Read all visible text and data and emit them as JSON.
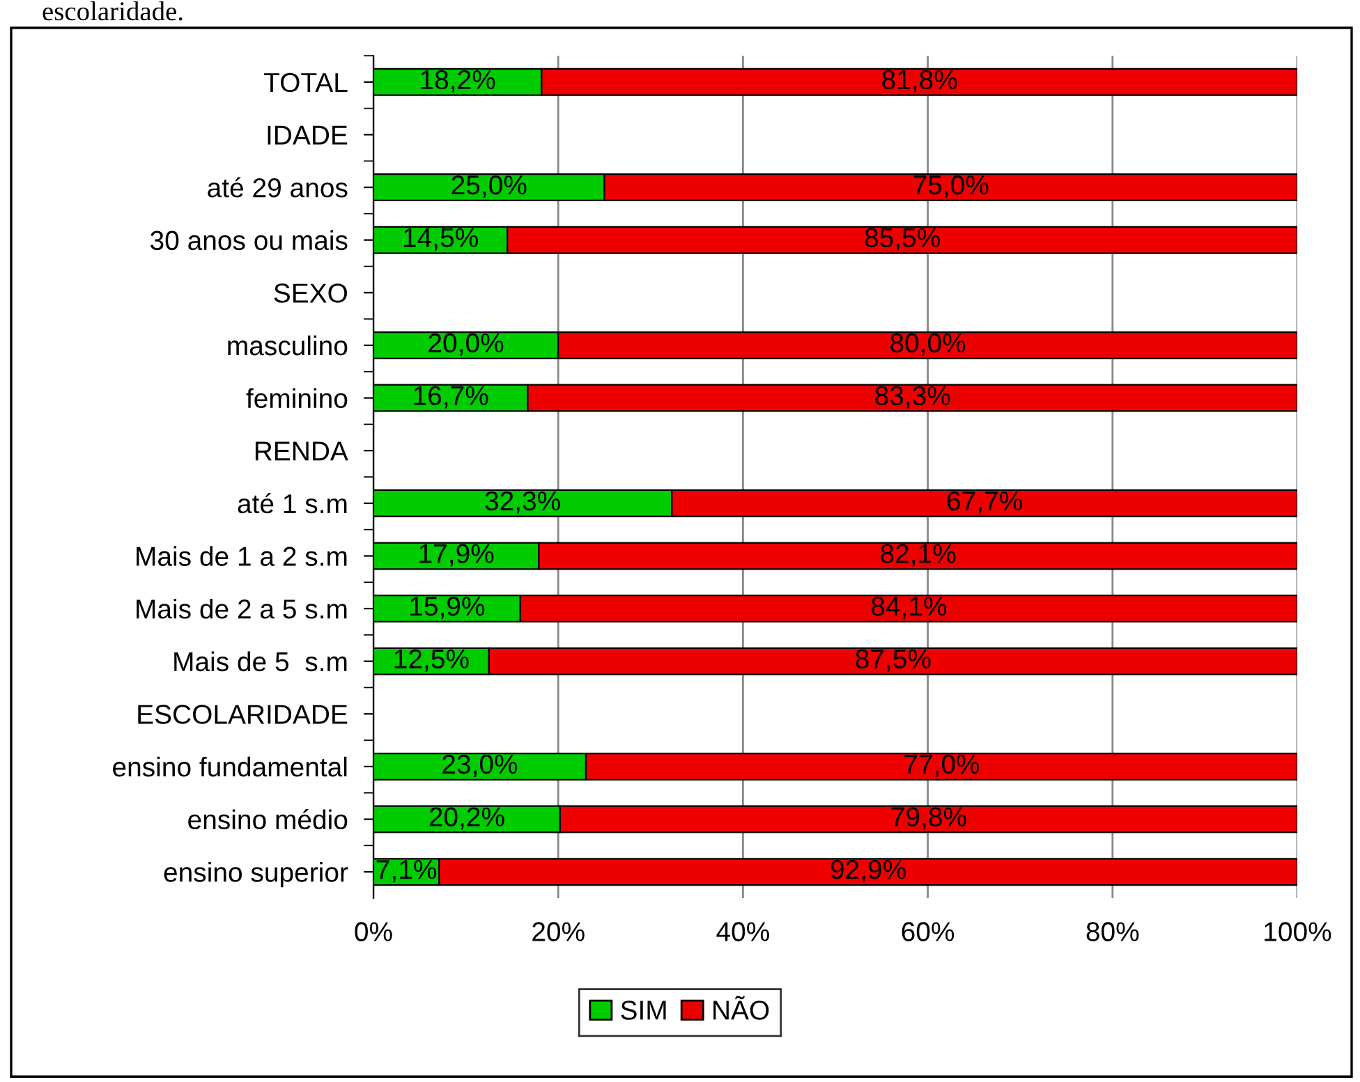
{
  "chart_data": {
    "type": "bar",
    "orientation": "horizontal",
    "stacked": true,
    "annotations": [
      "escolaridade."
    ],
    "categories": [
      "TOTAL",
      "IDADE",
      "até 29 anos",
      "30 anos ou mais",
      "SEXO",
      "masculino",
      "feminino",
      "RENDA",
      "até 1 s.m",
      "Mais de 1 a 2 s.m",
      "Mais de 2 a 5 s.m",
      "Mais de 5  s.m",
      "ESCOLARIDADE",
      "ensino fundamental",
      "ensino médio",
      "ensino superior"
    ],
    "series": [
      {
        "name": "SIM",
        "color": "#00cc00",
        "values": [
          18.2,
          null,
          25.0,
          14.5,
          null,
          20.0,
          16.7,
          null,
          32.3,
          17.9,
          15.9,
          12.5,
          null,
          23.0,
          20.2,
          7.1
        ],
        "value_labels": [
          "18,2%",
          null,
          "25,0%",
          "14,5%",
          null,
          "20,0%",
          "16,7%",
          null,
          "32,3%",
          "17,9%",
          "15,9%",
          "12,5%",
          null,
          "23,0%",
          "20,2%",
          "7,1%"
        ]
      },
      {
        "name": "NÃO",
        "color": "#ee0000",
        "values": [
          81.8,
          null,
          75.0,
          85.5,
          null,
          80.0,
          83.3,
          null,
          67.7,
          82.1,
          84.1,
          87.5,
          null,
          77.0,
          79.8,
          92.9
        ],
        "value_labels": [
          "81,8%",
          null,
          "75,0%",
          "85,5%",
          null,
          "80,0%",
          "83,3%",
          null,
          "67,7%",
          "82,1%",
          "84,1%",
          "87,5%",
          null,
          "77,0%",
          "79,8%",
          "92,9%"
        ]
      }
    ],
    "xlim": [
      0,
      100
    ],
    "xticks": [
      {
        "value": 0,
        "label": "0%"
      },
      {
        "value": 20,
        "label": "20%"
      },
      {
        "value": 40,
        "label": "40%"
      },
      {
        "value": 60,
        "label": "60%"
      },
      {
        "value": 80,
        "label": "80%"
      },
      {
        "value": 100,
        "label": "100%"
      }
    ],
    "grid": "x",
    "legend": "bottom"
  }
}
